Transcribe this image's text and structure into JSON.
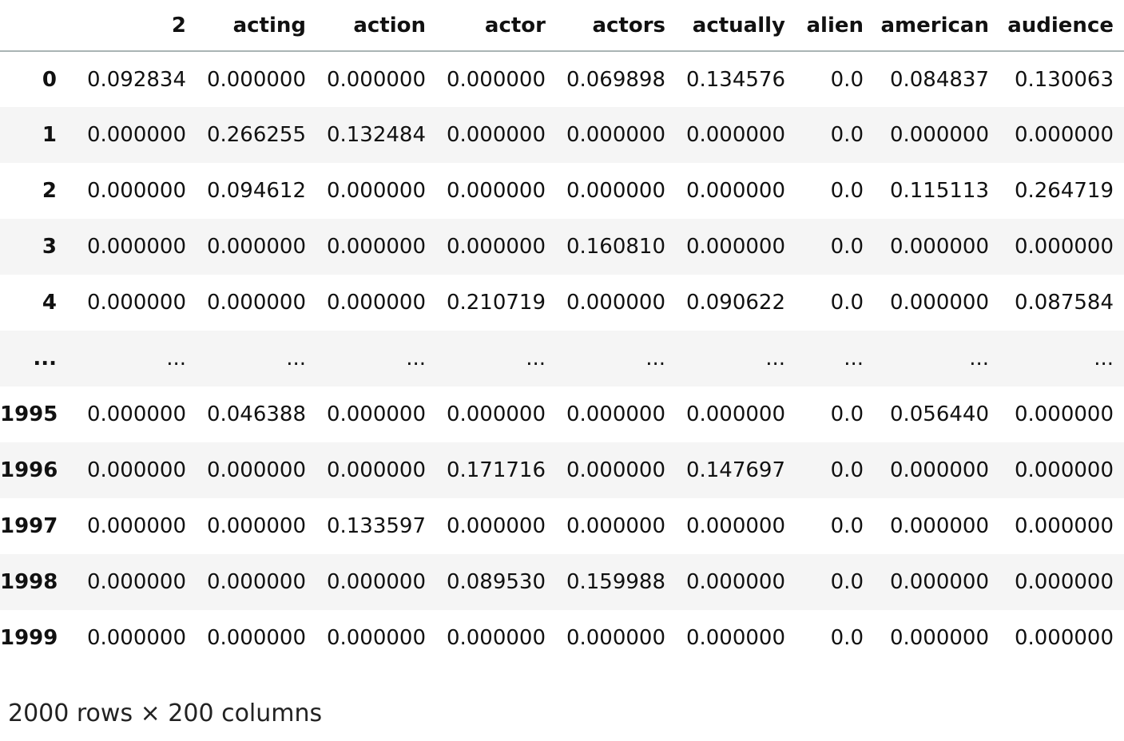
{
  "table": {
    "columns": [
      "",
      "2",
      "acting",
      "action",
      "actor",
      "actors",
      "actually",
      "alien",
      "american",
      "audience"
    ],
    "rows": [
      {
        "index": "0",
        "cells": [
          "0.092834",
          "0.000000",
          "0.000000",
          "0.000000",
          "0.069898",
          "0.134576",
          "0.0",
          "0.084837",
          "0.130063"
        ]
      },
      {
        "index": "1",
        "cells": [
          "0.000000",
          "0.266255",
          "0.132484",
          "0.000000",
          "0.000000",
          "0.000000",
          "0.0",
          "0.000000",
          "0.000000"
        ]
      },
      {
        "index": "2",
        "cells": [
          "0.000000",
          "0.094612",
          "0.000000",
          "0.000000",
          "0.000000",
          "0.000000",
          "0.0",
          "0.115113",
          "0.264719"
        ]
      },
      {
        "index": "3",
        "cells": [
          "0.000000",
          "0.000000",
          "0.000000",
          "0.000000",
          "0.160810",
          "0.000000",
          "0.0",
          "0.000000",
          "0.000000"
        ]
      },
      {
        "index": "4",
        "cells": [
          "0.000000",
          "0.000000",
          "0.000000",
          "0.210719",
          "0.000000",
          "0.090622",
          "0.0",
          "0.000000",
          "0.087584"
        ]
      },
      {
        "index": "...",
        "cells": [
          "...",
          "...",
          "...",
          "...",
          "...",
          "...",
          "...",
          "...",
          "..."
        ]
      },
      {
        "index": "1995",
        "cells": [
          "0.000000",
          "0.046388",
          "0.000000",
          "0.000000",
          "0.000000",
          "0.000000",
          "0.0",
          "0.056440",
          "0.000000"
        ]
      },
      {
        "index": "1996",
        "cells": [
          "0.000000",
          "0.000000",
          "0.000000",
          "0.171716",
          "0.000000",
          "0.147697",
          "0.0",
          "0.000000",
          "0.000000"
        ]
      },
      {
        "index": "1997",
        "cells": [
          "0.000000",
          "0.000000",
          "0.133597",
          "0.000000",
          "0.000000",
          "0.000000",
          "0.0",
          "0.000000",
          "0.000000"
        ]
      },
      {
        "index": "1998",
        "cells": [
          "0.000000",
          "0.000000",
          "0.000000",
          "0.089530",
          "0.159988",
          "0.000000",
          "0.0",
          "0.000000",
          "0.000000"
        ]
      },
      {
        "index": "1999",
        "cells": [
          "0.000000",
          "0.000000",
          "0.000000",
          "0.000000",
          "0.000000",
          "0.000000",
          "0.0",
          "0.000000",
          "0.000000"
        ]
      }
    ]
  },
  "shape_info": "2000 rows × 200 columns",
  "colors": {
    "header_border": "#a9b4b4",
    "stripe": "#f5f5f5",
    "text": "#111111"
  }
}
